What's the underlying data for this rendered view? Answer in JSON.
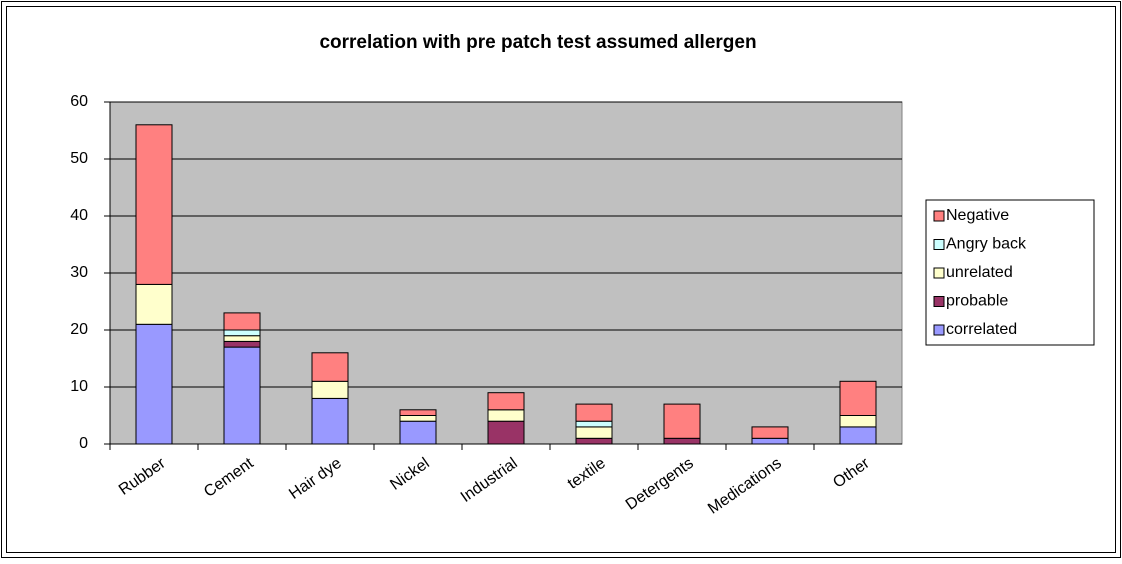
{
  "chart_data": {
    "type": "stacked_bar",
    "title": "correlation with pre patch test assumed allergen",
    "categories": [
      "Rubber",
      "Cement",
      "Hair dye",
      "Nickel",
      "Industrial",
      "textile",
      "Detergents",
      "Medications",
      "Other"
    ],
    "series": [
      {
        "name": "correlated",
        "color": "#9999ff",
        "values": [
          21,
          17,
          8,
          4,
          0,
          0,
          0,
          1,
          3
        ]
      },
      {
        "name": "probable",
        "color": "#993366",
        "values": [
          0,
          1,
          0,
          0,
          4,
          1,
          1,
          0,
          0
        ]
      },
      {
        "name": "unrelated",
        "color": "#ffffcc",
        "values": [
          7,
          1,
          3,
          1,
          2,
          2,
          0,
          0,
          2
        ]
      },
      {
        "name": "Angry back",
        "color": "#ccffff",
        "values": [
          0,
          1,
          0,
          0,
          0,
          1,
          0,
          0,
          0
        ]
      },
      {
        "name": "Negative",
        "color": "#ff8080",
        "values": [
          28,
          3,
          5,
          1,
          3,
          3,
          6,
          2,
          6
        ]
      }
    ],
    "ylim": [
      0,
      60
    ],
    "yticks": [
      0,
      10,
      20,
      30,
      40,
      50,
      60
    ],
    "grid": true,
    "legend": "right",
    "plot_background": "#c0c0c0"
  }
}
